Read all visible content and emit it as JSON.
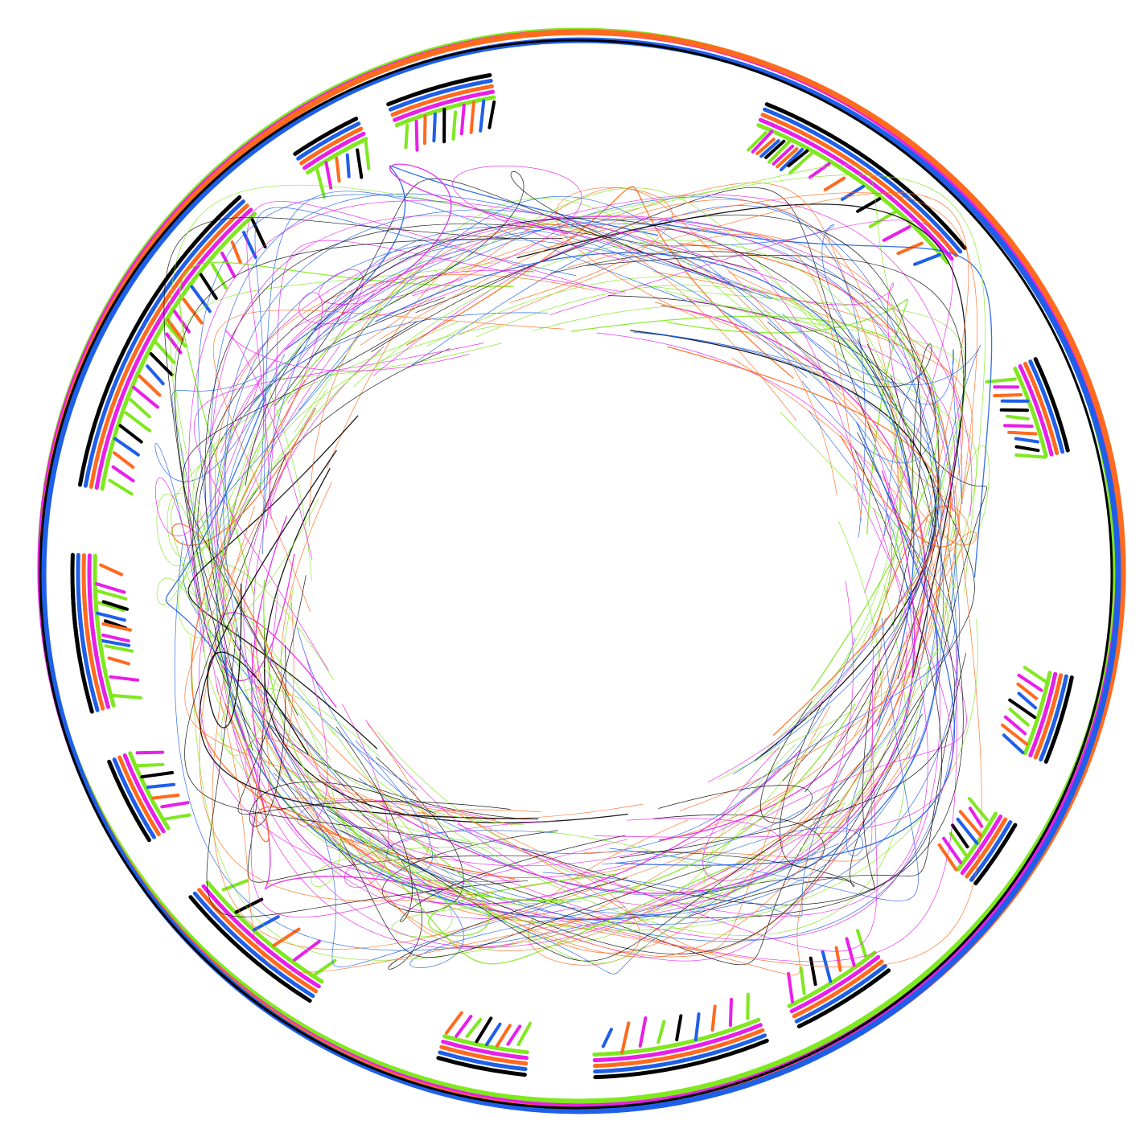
{
  "figure": {
    "kind": "circular-genome-plot",
    "background": "#ffffff",
    "series_colors": [
      "#7fe81f",
      "#e81fe8",
      "#ff6a1f",
      "#1f5fe8",
      "#000000"
    ],
    "series_count": 5,
    "rings": [
      "outer-contig-ring",
      "feature-track-ring",
      "link-chords"
    ]
  }
}
